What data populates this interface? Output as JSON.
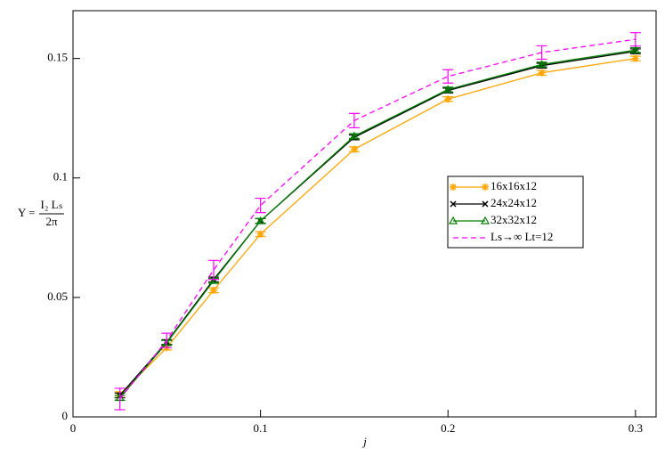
{
  "chart_data": {
    "type": "line",
    "x_label": "j",
    "y_label": {
      "lhs": "Υ =",
      "numerator": "I₂ Lₛ",
      "denominator": "2π"
    },
    "x": [
      0.025,
      0.05,
      0.075,
      0.1,
      0.15,
      0.2,
      0.25,
      0.3
    ],
    "series": [
      {
        "name": "16x16x12",
        "color": "#ffa500",
        "marker": "star",
        "dash": false,
        "values": [
          0.0093,
          0.029,
          0.053,
          0.0765,
          0.112,
          0.133,
          0.144,
          0.15
        ],
        "errors": [
          0.0012,
          0.001,
          0.001,
          0.001,
          0.001,
          0.001,
          0.001,
          0.001
        ]
      },
      {
        "name": "24x24x12",
        "color": "#000000",
        "marker": "x",
        "dash": false,
        "values": [
          0.009,
          0.0313,
          0.0575,
          0.082,
          0.117,
          0.1366,
          0.147,
          0.153
        ],
        "errors": [
          0.001,
          0.001,
          0.001,
          0.001,
          0.001,
          0.001,
          0.001,
          0.001
        ]
      },
      {
        "name": "32x32x12",
        "color": "#008000",
        "marker": "triangle",
        "dash": false,
        "values": [
          0.008,
          0.031,
          0.057,
          0.082,
          0.1175,
          0.137,
          0.1475,
          0.1535
        ],
        "errors": [
          0.001,
          0.001,
          0.001,
          0.001,
          0.001,
          0.001,
          0.001,
          0.001
        ]
      },
      {
        "name": "Ls→∞ Lt=12",
        "color": "#ff00ff",
        "marker": "none",
        "dash": true,
        "values": [
          0.0075,
          0.032,
          0.0615,
          0.0885,
          0.124,
          0.1425,
          0.1525,
          0.158
        ],
        "errors": [
          0.0045,
          0.003,
          0.004,
          0.003,
          0.003,
          0.0028,
          0.0028,
          0.0028
        ]
      }
    ],
    "xlim": [
      0,
      0.311
    ],
    "ylim": [
      0,
      0.17
    ],
    "xticks": [
      0,
      0.1,
      0.2,
      0.3
    ],
    "yticks": [
      0,
      0.05,
      0.1,
      0.15
    ],
    "grid": false,
    "legend": "right"
  }
}
